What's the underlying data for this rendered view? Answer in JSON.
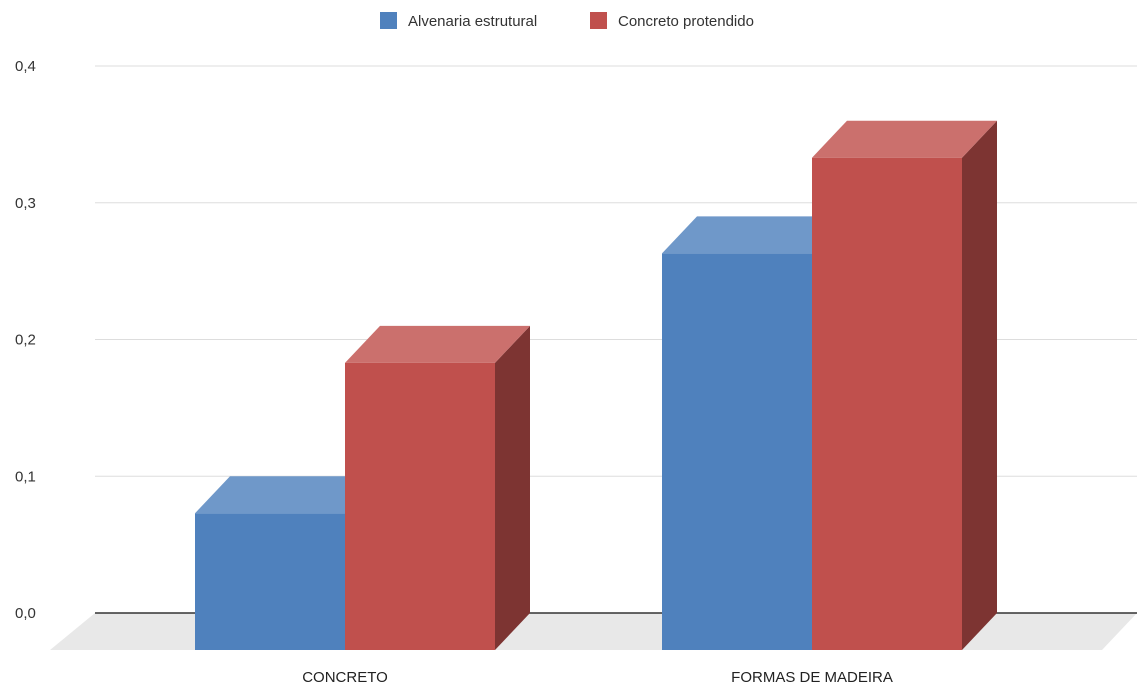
{
  "chart_data": {
    "type": "bar",
    "style": "3d-clustered-column",
    "categories": [
      "CONCRETO",
      "FORMAS DE MADEIRA"
    ],
    "series": [
      {
        "name": "Alvenaria estrutural",
        "values": [
          0.1,
          0.29
        ],
        "color": "#4f81bd"
      },
      {
        "name": "Concreto protendido",
        "values": [
          0.21,
          0.36
        ],
        "color": "#c0504d"
      }
    ],
    "yticks": [
      "0,0",
      "0,1",
      "0,2",
      "0,3",
      "0,4"
    ],
    "ylim": [
      0,
      0.4
    ],
    "grid": true,
    "legend_position": "top-center"
  }
}
